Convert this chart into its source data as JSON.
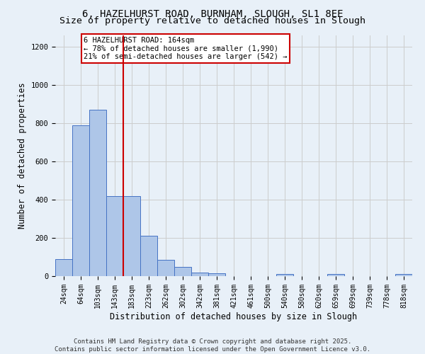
{
  "title_line1": "6, HAZELHURST ROAD, BURNHAM, SLOUGH, SL1 8EE",
  "title_line2": "Size of property relative to detached houses in Slough",
  "xlabel": "Distribution of detached houses by size in Slough",
  "ylabel": "Number of detached properties",
  "categories": [
    "24sqm",
    "64sqm",
    "103sqm",
    "143sqm",
    "183sqm",
    "223sqm",
    "262sqm",
    "302sqm",
    "342sqm",
    "381sqm",
    "421sqm",
    "461sqm",
    "500sqm",
    "540sqm",
    "580sqm",
    "620sqm",
    "659sqm",
    "699sqm",
    "739sqm",
    "778sqm",
    "818sqm"
  ],
  "values": [
    90,
    790,
    870,
    420,
    420,
    210,
    85,
    50,
    20,
    15,
    0,
    0,
    0,
    10,
    0,
    0,
    10,
    0,
    0,
    0,
    10
  ],
  "bar_color": "#aec6e8",
  "bar_edge_color": "#4472c4",
  "vline_x": 3.5,
  "vline_color": "#cc0000",
  "annotation_text_line1": "6 HAZELHURST ROAD: 164sqm",
  "annotation_text_line2": "← 78% of detached houses are smaller (1,990)",
  "annotation_text_line3": "21% of semi-detached houses are larger (542) →",
  "annotation_box_color": "#cc0000",
  "annotation_bg_color": "#ffffff",
  "ylim": [
    0,
    1260
  ],
  "yticks": [
    0,
    200,
    400,
    600,
    800,
    1000,
    1200
  ],
  "grid_color": "#cccccc",
  "bg_color": "#e8f0f8",
  "footer_line1": "Contains HM Land Registry data © Crown copyright and database right 2025.",
  "footer_line2": "Contains public sector information licensed under the Open Government Licence v3.0.",
  "title_fontsize": 10,
  "subtitle_fontsize": 9.5,
  "tick_fontsize": 7,
  "label_fontsize": 8.5,
  "footer_fontsize": 6.5
}
